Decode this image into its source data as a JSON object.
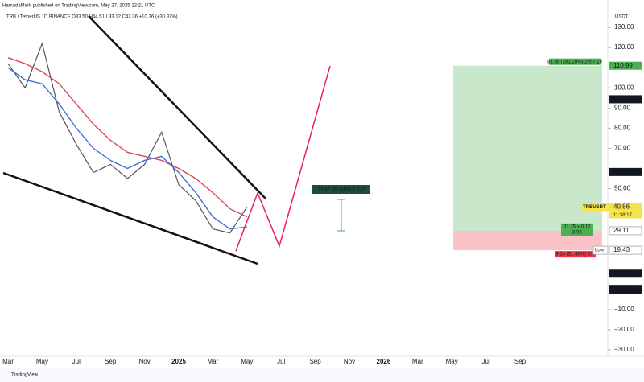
{
  "header": {
    "publisher": "HamadaMark published on TradingView.com, May 27, 2025 12:21 UTC",
    "symbol_line": "TRB / TetherUS  1D  BINANCE  O33.50 H44.51 L33.12 C43.36 +10.36 (+30.97%)",
    "currency": "USDT",
    "brand": "TradingView"
  },
  "chart_data": {
    "type": "line",
    "categories": [
      "Mar",
      null,
      "May",
      null,
      "Jul",
      null,
      "Sep",
      null,
      "Nov",
      null,
      "2025",
      null,
      "Mar",
      null,
      "May",
      null,
      "Jul",
      null,
      "Sep",
      null,
      "Nov",
      null,
      "2026",
      null,
      "Mar",
      null,
      "May",
      null,
      "Jul",
      null,
      "Sep"
    ],
    "series": [
      {
        "name": "TRBUSDT",
        "color": "#555555",
        "values": [
          112,
          100,
          122,
          88,
          72,
          58,
          62,
          55,
          62,
          78,
          52,
          44,
          30,
          28,
          40.86,
          null,
          null,
          null,
          null,
          null,
          null,
          null,
          null,
          null,
          null,
          null,
          null,
          null,
          null,
          null,
          null
        ]
      },
      {
        "name": "EMA slow",
        "color": "#e0454f",
        "values": [
          115,
          112,
          108,
          102,
          92,
          82,
          74,
          68,
          66,
          64,
          60,
          55,
          48,
          40,
          36,
          null,
          null,
          null,
          null,
          null,
          null,
          null,
          null,
          null,
          null,
          null,
          null,
          null,
          null,
          null,
          null
        ]
      },
      {
        "name": "EMA fast",
        "color": "#3f6fd1",
        "values": [
          110,
          104,
          102,
          92,
          80,
          70,
          64,
          60,
          64,
          66,
          58,
          48,
          36,
          30,
          31,
          null,
          null,
          null,
          null,
          null,
          null,
          null,
          null,
          null,
          null,
          null,
          null,
          null,
          null,
          null,
          null
        ]
      }
    ],
    "ylim": [
      -33.2,
      143.6
    ],
    "yticks": [
      {
        "value": 130,
        "label": "130.00"
      },
      {
        "value": 120,
        "label": "120.00"
      },
      {
        "value": 100,
        "label": "100.00"
      },
      {
        "value": 90,
        "label": "90.00"
      },
      {
        "value": 80,
        "label": "80.00"
      },
      {
        "value": 70,
        "label": "70.00"
      },
      {
        "value": 50,
        "label": "50.00"
      },
      {
        "value": -10,
        "label": "−10.00"
      },
      {
        "value": -20,
        "label": "−20.00"
      },
      {
        "value": -30,
        "label": "−30.00"
      }
    ],
    "price_levels": [
      {
        "value": 110.99,
        "fill": "#4caf50",
        "text_color": "#ffffff"
      },
      {
        "value": 94.34,
        "fill": "#131722",
        "text_color": "#ffffff"
      },
      {
        "value": 58.25,
        "fill": "#131722",
        "text_color": "#ffffff"
      },
      {
        "value": 40.86,
        "fill": "#f5e34a",
        "text_color": "#131722"
      },
      {
        "value": 29.11,
        "fill": "#ffffff",
        "text_color": "#131722"
      },
      {
        "value": 19.43,
        "fill": "#ffffff",
        "text_color": "#131722"
      },
      {
        "value": 7.81,
        "fill": "#131722",
        "text_color": "#ffffff"
      },
      {
        "value": -0.14,
        "fill": "#131722",
        "text_color": "#ffffff"
      }
    ],
    "symbol_tag": "TRBUSDT",
    "countdown": "11:38:17",
    "low_tag": "Low",
    "target_label": "81.88 (281.28%) 2357.19",
    "entry_label": "11.75 + 0.12",
    "entry_ratio": "8.96",
    "stop_label": "9.14 (31.40%) 247",
    "measure_label": "15.42 (52.84%) 1,542"
  }
}
